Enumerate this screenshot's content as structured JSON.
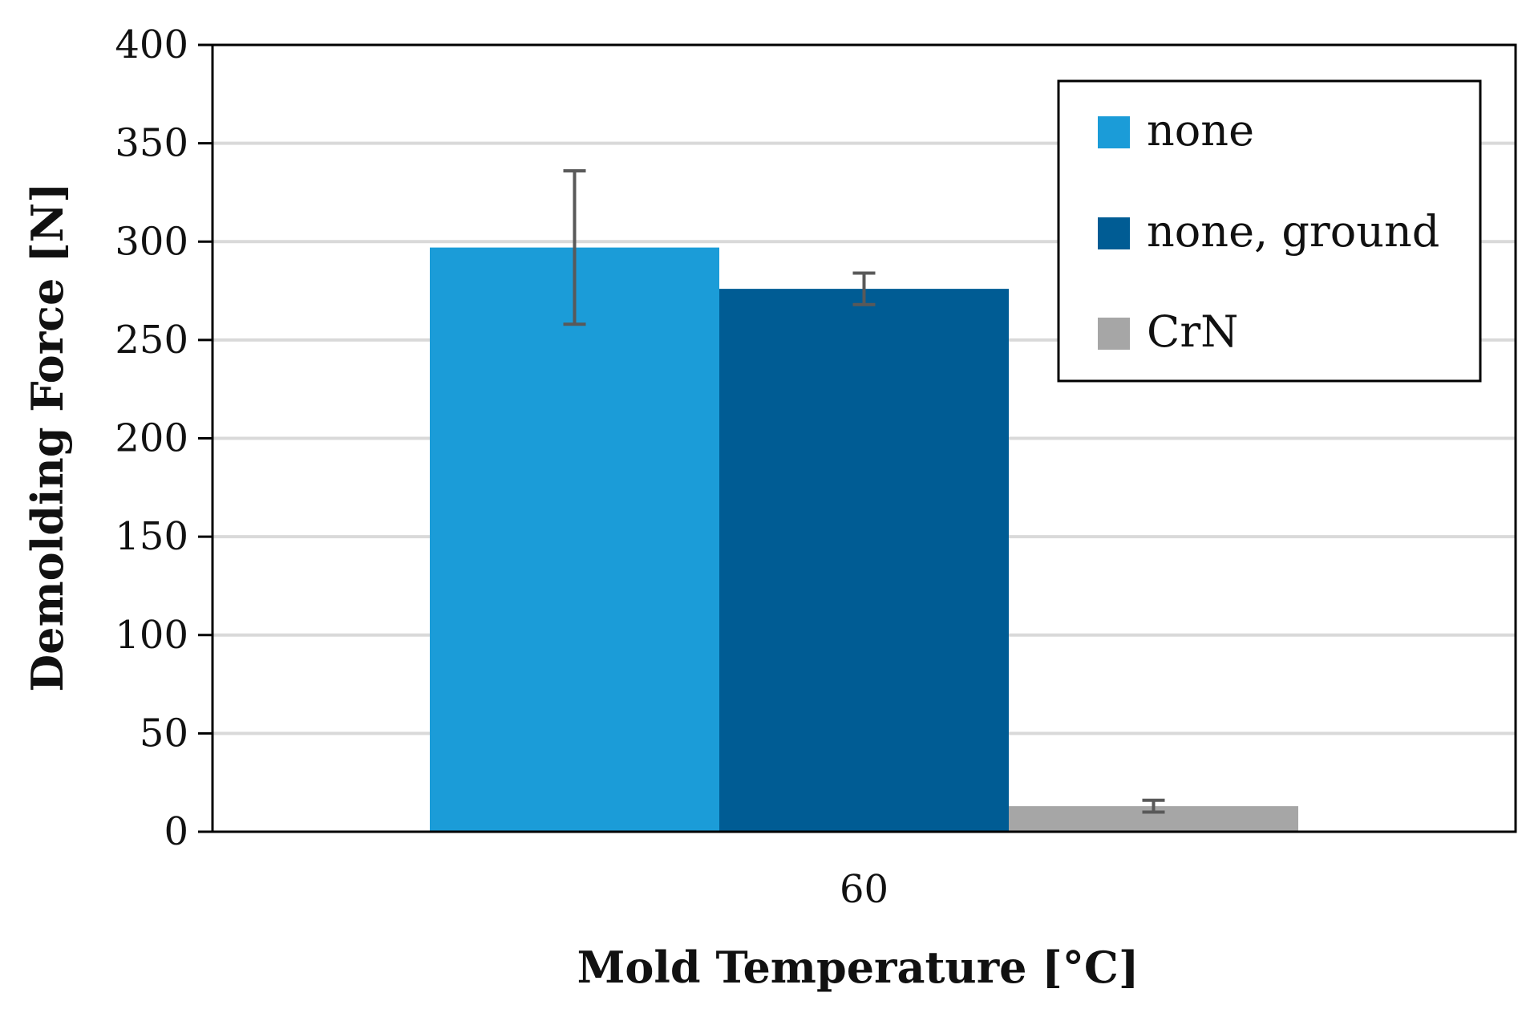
{
  "chart_data": {
    "type": "bar",
    "title": "",
    "xlabel": "Mold Temperature [°C]",
    "ylabel": "Demolding Force [N]",
    "ylim": [
      0,
      400
    ],
    "yticks": [
      0,
      50,
      100,
      150,
      200,
      250,
      300,
      350,
      400
    ],
    "grid": true,
    "legend_position": "top-right",
    "categories": [
      "60"
    ],
    "series": [
      {
        "name": "none",
        "color": "#1b9cd8",
        "values": [
          297
        ],
        "error_low": [
          258
        ],
        "error_high": [
          336
        ]
      },
      {
        "name": "none, ground",
        "color": "#005c94",
        "values": [
          276
        ],
        "error_low": [
          268
        ],
        "error_high": [
          284
        ]
      },
      {
        "name": "CrN",
        "color": "#a6a6a6",
        "values": [
          13
        ],
        "error_low": [
          10
        ],
        "error_high": [
          16
        ]
      }
    ]
  }
}
